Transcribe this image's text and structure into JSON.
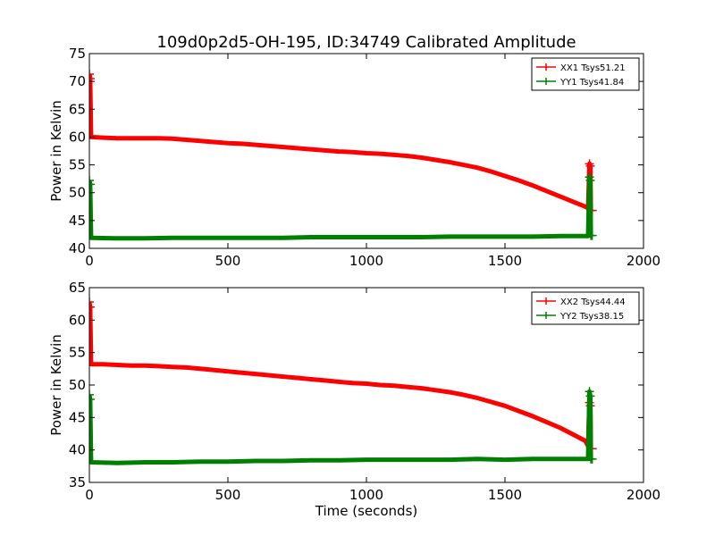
{
  "title": "109d0p2d5-OH-195, ID:34749 Calibrated Amplitude",
  "chart_data": [
    {
      "type": "line",
      "xlabel": "",
      "ylabel": "Power in Kelvin",
      "xlim": [
        0,
        2000
      ],
      "ylim": [
        40,
        75
      ],
      "xticks": [
        "0",
        "500",
        "1000",
        "1500",
        "2000"
      ],
      "yticks": [
        "40",
        "45",
        "50",
        "55",
        "60",
        "65",
        "70",
        "75"
      ],
      "grid": false,
      "legend_position": "top-right",
      "series": [
        {
          "name": "XX1 Tsys51.21",
          "color": "#ff0000",
          "x": [
            0,
            3,
            6,
            50,
            100,
            150,
            200,
            250,
            300,
            350,
            400,
            450,
            500,
            550,
            600,
            650,
            700,
            750,
            800,
            850,
            900,
            950,
            1000,
            1050,
            1100,
            1150,
            1200,
            1250,
            1300,
            1350,
            1400,
            1450,
            1500,
            1550,
            1600,
            1650,
            1700,
            1750,
            1790,
            1800,
            1805,
            1808,
            1810,
            1815
          ],
          "y": [
            71.3,
            70.5,
            60.0,
            59.9,
            59.8,
            59.8,
            59.8,
            59.8,
            59.7,
            59.5,
            59.3,
            59.1,
            58.9,
            58.8,
            58.6,
            58.4,
            58.2,
            58.0,
            57.8,
            57.6,
            57.4,
            57.3,
            57.1,
            57.0,
            56.8,
            56.6,
            56.3,
            55.9,
            55.5,
            55.0,
            54.5,
            53.8,
            53.0,
            52.2,
            51.3,
            50.3,
            49.3,
            48.3,
            47.5,
            47.2,
            55.2,
            54.8,
            46.8,
            46.8
          ]
        },
        {
          "name": "YY1 Tsys41.84",
          "color": "#008000",
          "x": [
            0,
            3,
            6,
            100,
            200,
            300,
            400,
            500,
            600,
            700,
            800,
            900,
            1000,
            1100,
            1200,
            1300,
            1400,
            1500,
            1600,
            1700,
            1790,
            1800,
            1805,
            1808,
            1810,
            1815
          ],
          "y": [
            52.2,
            51.5,
            41.9,
            41.8,
            41.8,
            41.9,
            41.9,
            41.9,
            41.9,
            41.9,
            42.0,
            42.0,
            42.0,
            42.0,
            42.0,
            42.1,
            42.1,
            42.1,
            42.1,
            42.2,
            42.2,
            42.2,
            52.8,
            52.2,
            42.3,
            42.3
          ]
        }
      ]
    },
    {
      "type": "line",
      "xlabel": "Time (seconds)",
      "ylabel": "Power in Kelvin",
      "xlim": [
        0,
        2000
      ],
      "ylim": [
        35,
        65
      ],
      "xticks": [
        "0",
        "500",
        "1000",
        "1500",
        "2000"
      ],
      "yticks": [
        "35",
        "40",
        "45",
        "50",
        "55",
        "60",
        "65"
      ],
      "grid": false,
      "legend_position": "top-right",
      "series": [
        {
          "name": "XX2 Tsys44.44",
          "color": "#ff0000",
          "x": [
            0,
            3,
            6,
            50,
            100,
            150,
            200,
            250,
            300,
            350,
            400,
            450,
            500,
            550,
            600,
            650,
            700,
            750,
            800,
            850,
            900,
            950,
            1000,
            1050,
            1100,
            1150,
            1200,
            1250,
            1300,
            1350,
            1400,
            1450,
            1500,
            1550,
            1600,
            1650,
            1700,
            1750,
            1790,
            1800,
            1805,
            1808,
            1810,
            1815
          ],
          "y": [
            62.8,
            62.0,
            53.2,
            53.2,
            53.1,
            53.0,
            53.0,
            52.9,
            52.8,
            52.7,
            52.5,
            52.3,
            52.1,
            51.9,
            51.7,
            51.5,
            51.3,
            51.1,
            50.9,
            50.7,
            50.5,
            50.3,
            50.2,
            50.0,
            49.9,
            49.7,
            49.5,
            49.2,
            48.9,
            48.5,
            48.0,
            47.4,
            46.8,
            46.0,
            45.2,
            44.3,
            43.4,
            42.3,
            41.4,
            40.6,
            47.3,
            46.8,
            40.2,
            40.2
          ]
        },
        {
          "name": "YY2 Tsys38.15",
          "color": "#008000",
          "x": [
            0,
            3,
            6,
            100,
            200,
            300,
            400,
            500,
            600,
            700,
            800,
            900,
            1000,
            1100,
            1200,
            1300,
            1400,
            1500,
            1600,
            1700,
            1790,
            1800,
            1805,
            1808,
            1810,
            1815
          ],
          "y": [
            48.5,
            47.8,
            38.1,
            38.0,
            38.1,
            38.1,
            38.2,
            38.2,
            38.3,
            38.3,
            38.4,
            38.4,
            38.5,
            38.5,
            38.5,
            38.5,
            38.6,
            38.5,
            38.6,
            38.6,
            38.6,
            38.6,
            49.0,
            48.3,
            38.6,
            38.6
          ]
        }
      ]
    }
  ]
}
